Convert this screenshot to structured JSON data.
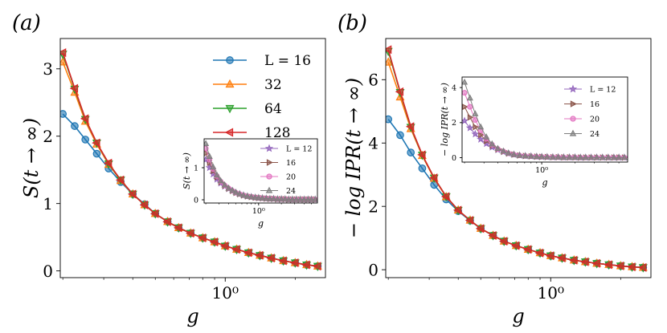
{
  "chart_data": [
    {
      "type": "line",
      "panel_label": "(a)",
      "xlabel": "g",
      "ylabel": "S(t → ∞)",
      "xscale": "log",
      "xlim": [
        0.195,
        2.7
      ],
      "ylim": [
        -0.1,
        3.45
      ],
      "yticks": [
        0,
        1,
        2,
        3
      ],
      "xticks": [
        1
      ],
      "xtick_labels": [
        "10⁰"
      ],
      "legend": "upper-right",
      "x": [
        0.2,
        0.225,
        0.25,
        0.28,
        0.315,
        0.355,
        0.4,
        0.45,
        0.5,
        0.565,
        0.63,
        0.71,
        0.8,
        0.9,
        1.0,
        1.12,
        1.26,
        1.41,
        1.58,
        1.78,
        2.0,
        2.24,
        2.5
      ],
      "series": [
        {
          "name": "L = 16",
          "color": "#1f77b4",
          "marker": "circle",
          "values": [
            2.33,
            2.15,
            1.95,
            1.74,
            1.52,
            1.32,
            1.14,
            0.99,
            0.85,
            0.73,
            0.64,
            0.56,
            0.49,
            0.43,
            0.37,
            0.32,
            0.27,
            0.23,
            0.19,
            0.15,
            0.12,
            0.09,
            0.07
          ]
        },
        {
          "name": "32",
          "color": "#ff7f0e",
          "marker": "triangle-up",
          "values": [
            3.1,
            2.65,
            2.22,
            1.88,
            1.58,
            1.34,
            1.14,
            0.98,
            0.85,
            0.73,
            0.64,
            0.56,
            0.49,
            0.43,
            0.37,
            0.32,
            0.27,
            0.23,
            0.19,
            0.15,
            0.12,
            0.09,
            0.07
          ]
        },
        {
          "name": "64",
          "color": "#2ca02c",
          "marker": "triangle-down",
          "values": [
            3.22,
            2.7,
            2.25,
            1.9,
            1.59,
            1.35,
            1.14,
            0.98,
            0.85,
            0.73,
            0.64,
            0.56,
            0.49,
            0.43,
            0.37,
            0.32,
            0.27,
            0.23,
            0.19,
            0.15,
            0.12,
            0.09,
            0.07
          ]
        },
        {
          "name": "128",
          "color": "#d62728",
          "marker": "triangle-left",
          "values": [
            3.24,
            2.71,
            2.26,
            1.9,
            1.6,
            1.35,
            1.14,
            0.98,
            0.85,
            0.73,
            0.64,
            0.56,
            0.49,
            0.43,
            0.37,
            0.32,
            0.27,
            0.23,
            0.19,
            0.15,
            0.12,
            0.09,
            0.07
          ]
        }
      ],
      "inset": {
        "xlabel": "g",
        "ylabel": "S(t → ∞)",
        "xscale": "log",
        "xlim": [
          0.19,
          6
        ],
        "ylim": [
          -0.1,
          1.9
        ],
        "yticks": [
          0,
          1
        ],
        "xticks": [
          1
        ],
        "xtick_labels": [
          "10⁰"
        ],
        "legend": "right",
        "x": [
          0.2,
          0.224,
          0.25,
          0.28,
          0.315,
          0.355,
          0.4,
          0.45,
          0.5,
          0.56,
          0.63,
          0.71,
          0.8,
          0.9,
          1.0,
          1.12,
          1.26,
          1.41,
          1.58,
          1.78,
          2.0,
          2.24,
          2.5,
          2.8,
          3.15,
          3.55,
          4.0,
          4.5,
          5.0,
          5.6
        ],
        "series": [
          {
            "name": "L = 12",
            "color": "#9467bd",
            "marker": "star",
            "values": [
              1.25,
              1.0,
              0.8,
              0.64,
              0.52,
              0.42,
              0.34,
              0.28,
              0.22,
              0.18,
              0.14,
              0.11,
              0.09,
              0.07,
              0.06,
              0.05,
              0.04,
              0.03,
              0.03,
              0.02,
              0.02,
              0.02,
              0.01,
              0.01,
              0.01,
              0.01,
              0.01,
              0.01,
              0.01,
              0.01
            ]
          },
          {
            "name": "16",
            "color": "#8c564b",
            "marker": "triangle-right",
            "values": [
              1.45,
              1.15,
              0.9,
              0.7,
              0.55,
              0.44,
              0.35,
              0.28,
              0.22,
              0.18,
              0.14,
              0.11,
              0.09,
              0.07,
              0.06,
              0.05,
              0.04,
              0.03,
              0.03,
              0.02,
              0.02,
              0.02,
              0.01,
              0.01,
              0.01,
              0.01,
              0.01,
              0.01,
              0.01,
              0.01
            ]
          },
          {
            "name": "20",
            "color": "#e377c2",
            "marker": "circle",
            "values": [
              1.6,
              1.25,
              0.96,
              0.74,
              0.57,
              0.45,
              0.36,
              0.28,
              0.22,
              0.18,
              0.14,
              0.11,
              0.09,
              0.07,
              0.06,
              0.05,
              0.04,
              0.03,
              0.03,
              0.02,
              0.02,
              0.02,
              0.01,
              0.01,
              0.01,
              0.01,
              0.01,
              0.01,
              0.01,
              0.01
            ]
          },
          {
            "name": "24",
            "color": "#7f7f7f",
            "marker": "triangle-up",
            "values": [
              1.75,
              1.35,
              1.02,
              0.77,
              0.59,
              0.46,
              0.36,
              0.29,
              0.23,
              0.18,
              0.14,
              0.11,
              0.09,
              0.07,
              0.06,
              0.05,
              0.04,
              0.03,
              0.03,
              0.02,
              0.02,
              0.02,
              0.01,
              0.01,
              0.01,
              0.01,
              0.01,
              0.01,
              0.01,
              0.01
            ]
          }
        ]
      }
    },
    {
      "type": "line",
      "panel_label": "(b)",
      "xlabel": "g",
      "ylabel": "− log IPR(t → ∞)",
      "xscale": "log",
      "xlim": [
        0.195,
        2.7
      ],
      "ylim": [
        -0.25,
        7.3
      ],
      "yticks": [
        0,
        2,
        4,
        6
      ],
      "xticks": [
        1
      ],
      "xtick_labels": [
        "10⁰"
      ],
      "legend": "none",
      "x": [
        0.2,
        0.225,
        0.25,
        0.28,
        0.315,
        0.355,
        0.4,
        0.45,
        0.5,
        0.565,
        0.63,
        0.71,
        0.8,
        0.9,
        1.0,
        1.12,
        1.26,
        1.41,
        1.58,
        1.78,
        2.0,
        2.24,
        2.5
      ],
      "series": [
        {
          "name": "L = 16",
          "color": "#1f77b4",
          "marker": "circle",
          "values": [
            4.75,
            4.25,
            3.7,
            3.2,
            2.68,
            2.22,
            1.85,
            1.55,
            1.3,
            1.08,
            0.9,
            0.76,
            0.64,
            0.53,
            0.44,
            0.37,
            0.3,
            0.25,
            0.2,
            0.16,
            0.12,
            0.09,
            0.07
          ]
        },
        {
          "name": "32",
          "color": "#ff7f0e",
          "marker": "triangle-up",
          "values": [
            6.55,
            5.45,
            4.45,
            3.6,
            2.88,
            2.3,
            1.88,
            1.56,
            1.3,
            1.08,
            0.9,
            0.76,
            0.64,
            0.53,
            0.44,
            0.37,
            0.3,
            0.25,
            0.2,
            0.16,
            0.12,
            0.09,
            0.07
          ]
        },
        {
          "name": "64",
          "color": "#2ca02c",
          "marker": "triangle-down",
          "values": [
            6.9,
            5.6,
            4.5,
            3.62,
            2.9,
            2.31,
            1.88,
            1.56,
            1.3,
            1.08,
            0.9,
            0.76,
            0.64,
            0.53,
            0.44,
            0.37,
            0.3,
            0.25,
            0.2,
            0.16,
            0.12,
            0.09,
            0.07
          ]
        },
        {
          "name": "128",
          "color": "#d62728",
          "marker": "triangle-left",
          "values": [
            6.95,
            5.62,
            4.52,
            3.63,
            2.9,
            2.31,
            1.88,
            1.56,
            1.3,
            1.08,
            0.9,
            0.76,
            0.64,
            0.53,
            0.44,
            0.37,
            0.3,
            0.25,
            0.2,
            0.16,
            0.12,
            0.09,
            0.07
          ]
        }
      ],
      "inset": {
        "xlabel": "g",
        "ylabel": "− log IPR(t → ∞)",
        "xscale": "log",
        "xlim": [
          0.19,
          6
        ],
        "ylim": [
          -0.25,
          4.6
        ],
        "yticks": [
          0,
          2,
          4
        ],
        "xticks": [
          1
        ],
        "xtick_labels": [
          "10⁰"
        ],
        "legend": "right",
        "x": [
          0.2,
          0.224,
          0.25,
          0.28,
          0.315,
          0.355,
          0.4,
          0.45,
          0.5,
          0.56,
          0.63,
          0.71,
          0.8,
          0.9,
          1.0,
          1.12,
          1.26,
          1.41,
          1.58,
          1.78,
          2.0,
          2.24,
          2.5,
          2.8,
          3.15,
          3.55,
          4.0,
          4.5,
          5.0,
          5.6
        ],
        "series": [
          {
            "name": "L = 12",
            "color": "#9467bd",
            "marker": "star",
            "values": [
              2.1,
              1.7,
              1.35,
              1.05,
              0.8,
              0.6,
              0.45,
              0.33,
              0.24,
              0.18,
              0.13,
              0.1,
              0.08,
              0.06,
              0.05,
              0.04,
              0.03,
              0.03,
              0.02,
              0.02,
              0.02,
              0.01,
              0.01,
              0.01,
              0.01,
              0.01,
              0.01,
              0.01,
              0.01,
              0.01
            ]
          },
          {
            "name": "16",
            "color": "#8c564b",
            "marker": "triangle-right",
            "values": [
              2.9,
              2.3,
              1.75,
              1.3,
              0.95,
              0.68,
              0.48,
              0.35,
              0.25,
              0.18,
              0.13,
              0.1,
              0.08,
              0.06,
              0.05,
              0.04,
              0.03,
              0.03,
              0.02,
              0.02,
              0.02,
              0.01,
              0.01,
              0.01,
              0.01,
              0.01,
              0.01,
              0.01,
              0.01,
              0.01
            ]
          },
          {
            "name": "20",
            "color": "#e377c2",
            "marker": "circle",
            "values": [
              3.7,
              2.9,
              2.15,
              1.55,
              1.08,
              0.74,
              0.5,
              0.36,
              0.25,
              0.18,
              0.13,
              0.1,
              0.08,
              0.06,
              0.05,
              0.04,
              0.03,
              0.03,
              0.02,
              0.02,
              0.02,
              0.01,
              0.01,
              0.01,
              0.01,
              0.01,
              0.01,
              0.01,
              0.01,
              0.01
            ]
          },
          {
            "name": "24",
            "color": "#7f7f7f",
            "marker": "triangle-up",
            "values": [
              4.3,
              3.4,
              2.5,
              1.75,
              1.18,
              0.78,
              0.52,
              0.37,
              0.26,
              0.18,
              0.13,
              0.1,
              0.08,
              0.06,
              0.05,
              0.04,
              0.03,
              0.03,
              0.02,
              0.02,
              0.02,
              0.01,
              0.01,
              0.01,
              0.01,
              0.01,
              0.01,
              0.01,
              0.01,
              0.01
            ]
          }
        ]
      }
    }
  ]
}
